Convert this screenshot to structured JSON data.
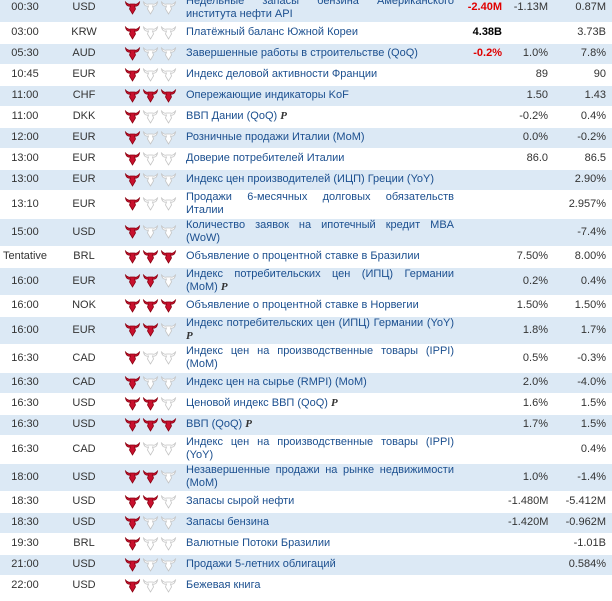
{
  "calendar": {
    "actual_color": "#e00000",
    "rows": [
      {
        "time": "00:30",
        "currency": "USD",
        "importance": 1,
        "event": "Недельные запасы бензина Американского института нефти API",
        "actual": "-2.40M",
        "actual_tone": "negative",
        "forecast": "-1.13M",
        "previous": "0.87M"
      },
      {
        "time": "03:00",
        "currency": "KRW",
        "importance": 1,
        "event": "Платёжный баланс Южной Кореи",
        "actual": "4.38B",
        "actual_tone": "positive",
        "previous": "3.73B"
      },
      {
        "time": "05:30",
        "currency": "AUD",
        "importance": 1,
        "event": "Завершенные работы в строительстве (QoQ)",
        "actual": "-0.2%",
        "actual_tone": "negative",
        "forecast": "1.0%",
        "previous": "7.8%"
      },
      {
        "time": "10:45",
        "currency": "EUR",
        "importance": 1,
        "event": "Индекс деловой активности Франции",
        "forecast": "89",
        "previous": "90"
      },
      {
        "time": "11:00",
        "currency": "CHF",
        "importance": 3,
        "event": "Опережающие индикаторы KoF",
        "forecast": "1.50",
        "previous": "1.43"
      },
      {
        "time": "11:00",
        "currency": "DKK",
        "importance": 1,
        "event": "ВВП Дании (QoQ)",
        "flag": "P",
        "forecast": "-0.2%",
        "previous": "0.4%"
      },
      {
        "time": "12:00",
        "currency": "EUR",
        "importance": 1,
        "event": "Розничные продажи Италии (MoM)",
        "forecast": "0.0%",
        "previous": "-0.2%"
      },
      {
        "time": "13:00",
        "currency": "EUR",
        "importance": 1,
        "event": "Доверие потребителей Италии",
        "forecast": "86.0",
        "previous": "86.5"
      },
      {
        "time": "13:00",
        "currency": "EUR",
        "importance": 1,
        "event": "Индекс цен производителей (ИЦП) Греции (YoY)",
        "previous": "2.90%"
      },
      {
        "time": "13:10",
        "currency": "EUR",
        "importance": 1,
        "event": "Продажи 6-месячных долговых обязательств Италии",
        "previous": "2.957%"
      },
      {
        "time": "15:00",
        "currency": "USD",
        "importance": 1,
        "event": "Количество заявок на ипотечный кредит MBA (WoW)",
        "previous": "-7.4%"
      },
      {
        "time": "Tentative",
        "currency": "BRL",
        "importance": 3,
        "event": "Объявление о процентной ставке в Бразилии",
        "forecast": "7.50%",
        "previous": "8.00%"
      },
      {
        "time": "16:00",
        "currency": "EUR",
        "importance": 2,
        "event": "Индекс потребительских цен (ИПЦ) Германии (MoM)",
        "flag": "P",
        "forecast": "0.2%",
        "previous": "0.4%"
      },
      {
        "time": "16:00",
        "currency": "NOK",
        "importance": 3,
        "event": "Объявление о процентной ставке в Норвегии",
        "forecast": "1.50%",
        "previous": "1.50%"
      },
      {
        "time": "16:00",
        "currency": "EUR",
        "importance": 2,
        "event": "Индекс потребительских цен (ИПЦ) Германии (YoY)",
        "flag": "P",
        "forecast": "1.8%",
        "previous": "1.7%"
      },
      {
        "time": "16:30",
        "currency": "CAD",
        "importance": 1,
        "event": "Индекс цен на производственные товары (IPPI) (MoM)",
        "forecast": "0.5%",
        "previous": "-0.3%"
      },
      {
        "time": "16:30",
        "currency": "CAD",
        "importance": 1,
        "event": "Индекс цен на сырье (RMPI) (MoM)",
        "forecast": "2.0%",
        "previous": "-4.0%"
      },
      {
        "time": "16:30",
        "currency": "USD",
        "importance": 2,
        "event": "Ценовой индекс ВВП (QoQ)",
        "flag": "P",
        "forecast": "1.6%",
        "previous": "1.5%"
      },
      {
        "time": "16:30",
        "currency": "USD",
        "importance": 3,
        "event": "ВВП (QoQ)",
        "flag": "P",
        "forecast": "1.7%",
        "previous": "1.5%"
      },
      {
        "time": "16:30",
        "currency": "CAD",
        "importance": 1,
        "event": "Индекс цен на производственные товары (IPPI) (YoY)",
        "previous": "0.4%"
      },
      {
        "time": "18:00",
        "currency": "USD",
        "importance": 2,
        "event": "Незавершенные продажи на рынке недвижимости (MoM)",
        "forecast": "1.0%",
        "previous": "-1.4%"
      },
      {
        "time": "18:30",
        "currency": "USD",
        "importance": 2,
        "event": "Запасы сырой нефти",
        "forecast": "-1.480M",
        "previous": "-5.412M"
      },
      {
        "time": "18:30",
        "currency": "USD",
        "importance": 1,
        "event": "Запасы бензина",
        "forecast": "-1.420M",
        "previous": "-0.962M"
      },
      {
        "time": "19:30",
        "currency": "BRL",
        "importance": 1,
        "event": "Валютные Потоки Бразилии",
        "previous": "-1.01B"
      },
      {
        "time": "21:00",
        "currency": "USD",
        "importance": 1,
        "event": "Продажи 5-летних облигаций",
        "previous": "0.584%"
      },
      {
        "time": "22:00",
        "currency": "USD",
        "importance": 1,
        "event": "Бежевая книга"
      }
    ]
  }
}
